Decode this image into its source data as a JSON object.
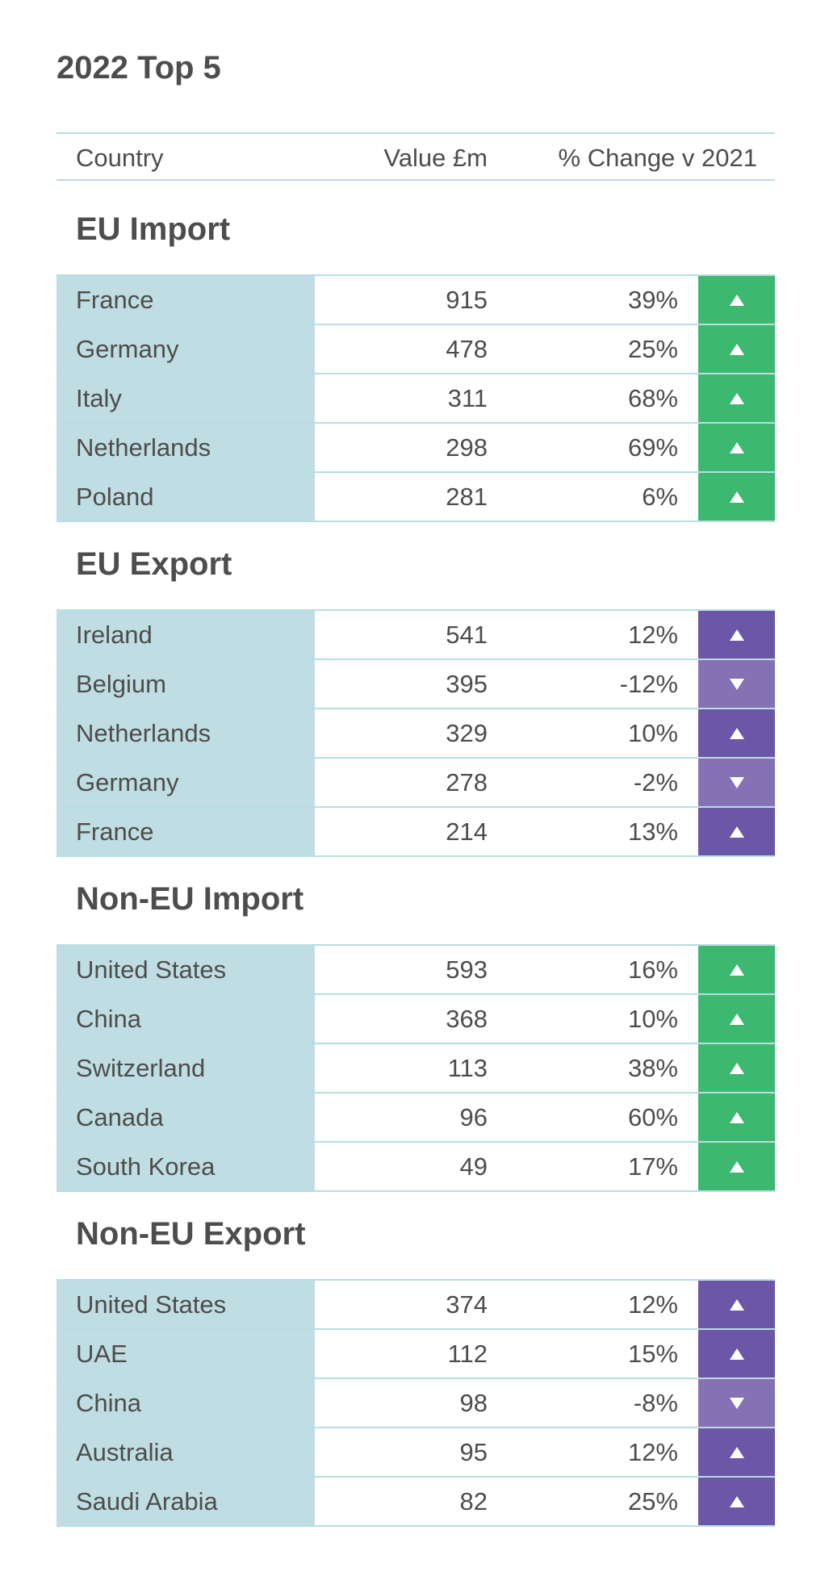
{
  "title": "2022 Top 5",
  "headers": {
    "country": "Country",
    "value": "Value £m",
    "change": "% Change v 2021"
  },
  "colors": {
    "green": "#3db870",
    "purple_up": "#6c56a7",
    "purple_down": "#8671b5",
    "country_bg": "#bfdde2",
    "border": "#b9dde1"
  },
  "chart_data": {
    "type": "table",
    "columns": [
      "Country",
      "Value £m",
      "% Change v 2021"
    ],
    "sections": [
      {
        "title": "EU Import",
        "rows": [
          {
            "country": "France",
            "value": "915",
            "change": "39%",
            "direction": "up"
          },
          {
            "country": "Germany",
            "value": "478",
            "change": "25%",
            "direction": "up"
          },
          {
            "country": "Italy",
            "value": "311",
            "change": "68%",
            "direction": "up"
          },
          {
            "country": "Netherlands",
            "value": "298",
            "change": "69%",
            "direction": "up"
          },
          {
            "country": "Poland",
            "value": "281",
            "change": "6%",
            "direction": "up"
          }
        ]
      },
      {
        "title": "EU Export",
        "rows": [
          {
            "country": "Ireland",
            "value": "541",
            "change": "12%",
            "direction": "up"
          },
          {
            "country": "Belgium",
            "value": "395",
            "change": "-12%",
            "direction": "down"
          },
          {
            "country": "Netherlands",
            "value": "329",
            "change": "10%",
            "direction": "up"
          },
          {
            "country": "Germany",
            "value": "278",
            "change": "-2%",
            "direction": "down"
          },
          {
            "country": "France",
            "value": "214",
            "change": "13%",
            "direction": "up"
          }
        ]
      },
      {
        "title": "Non-EU Import",
        "rows": [
          {
            "country": "United States",
            "value": "593",
            "change": "16%",
            "direction": "up"
          },
          {
            "country": "China",
            "value": "368",
            "change": "10%",
            "direction": "up"
          },
          {
            "country": "Switzerland",
            "value": "113",
            "change": "38%",
            "direction": "up"
          },
          {
            "country": "Canada",
            "value": "96",
            "change": "60%",
            "direction": "up"
          },
          {
            "country": "South Korea",
            "value": "49",
            "change": "17%",
            "direction": "up"
          }
        ]
      },
      {
        "title": "Non-EU Export",
        "rows": [
          {
            "country": "United States",
            "value": "374",
            "change": "12%",
            "direction": "up"
          },
          {
            "country": "UAE",
            "value": "112",
            "change": "15%",
            "direction": "up"
          },
          {
            "country": "China",
            "value": "98",
            "change": "-8%",
            "direction": "down"
          },
          {
            "country": "Australia",
            "value": "95",
            "change": "12%",
            "direction": "up"
          },
          {
            "country": "Saudi Arabia",
            "value": "82",
            "change": "25%",
            "direction": "up"
          }
        ]
      }
    ]
  }
}
